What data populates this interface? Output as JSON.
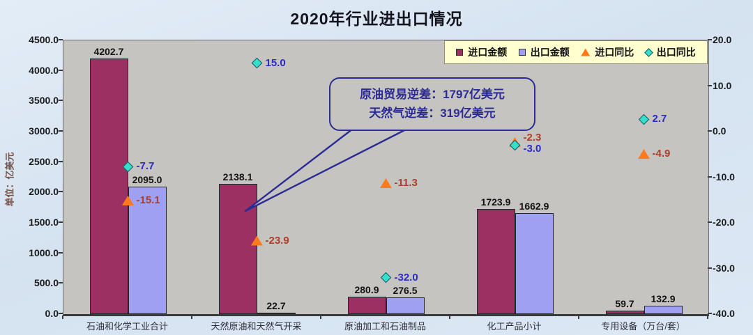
{
  "page": {
    "title": "2020年行业进出口情况"
  },
  "annotation": {
    "lines": [
      "原油贸易逆差：1797亿美元",
      "天然气逆差：319亿美元"
    ]
  },
  "chart_data": {
    "type": "bar",
    "title": "2020年行业进出口情况",
    "ylabel_left": "单位：亿美元",
    "categories": [
      "石油和化学工业合计",
      "天然原油和天然气开采",
      "原油加工和石油制品",
      "化工产品小计",
      "专用设备（万台/套）"
    ],
    "series": [
      {
        "key": "import-amount",
        "name": "进口金额",
        "kind": "bar",
        "axis": "left",
        "values": [
          4202.7,
          2138.1,
          280.9,
          1723.9,
          59.7
        ]
      },
      {
        "key": "export-amount",
        "name": "出口金额",
        "kind": "bar",
        "axis": "left",
        "values": [
          2095.0,
          22.7,
          276.5,
          1662.9,
          132.9
        ]
      },
      {
        "key": "import-yoy",
        "name": "进口同比",
        "kind": "triangle",
        "axis": "right",
        "values": [
          -15.1,
          -23.9,
          -11.3,
          -2.3,
          -4.9
        ]
      },
      {
        "key": "export-yoy",
        "name": "出口同比",
        "kind": "diamond",
        "axis": "right",
        "values": [
          -7.7,
          15.0,
          -32.0,
          -3.0,
          2.7
        ]
      }
    ],
    "left_axis": {
      "min": 0,
      "max": 4500,
      "step": 500,
      "tick_labels": [
        "0.0",
        "500.0",
        "1000.0",
        "1500.0",
        "2000.0",
        "2500.0",
        "3000.0",
        "3500.0",
        "4000.0",
        "4500.0"
      ]
    },
    "right_axis": {
      "min": -40,
      "max": 20,
      "step": 10,
      "tick_labels": [
        "-40.0",
        "-30.0",
        "-20.0",
        "-10.0",
        "0.0",
        "10.0",
        "20.0"
      ]
    },
    "legend": {
      "position": "top-right"
    },
    "grid": false,
    "colors": {
      "import_bar": "#9c3063",
      "export_bar": "#9fa0f2",
      "import_marker": "#ff7a1a",
      "export_marker": "#35e0cb",
      "import_label": "#ae3d2b",
      "export_label": "#2a2acc",
      "bar_value_label": "#121212",
      "annotation_accent": "#2b2b93",
      "plot_bg": "#c6c4c0",
      "page_bg": "#d9e5f1",
      "legend_bg": "#ffffcf"
    }
  }
}
